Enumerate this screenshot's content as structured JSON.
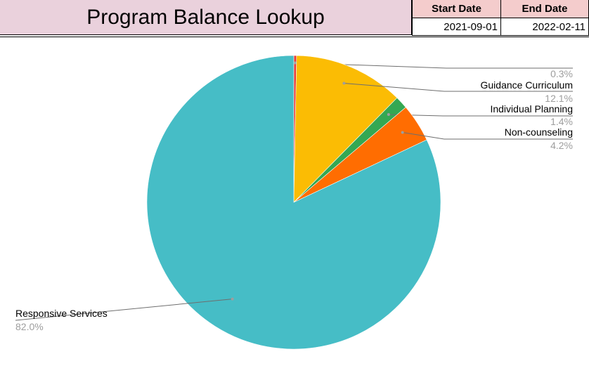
{
  "header": {
    "title": "Program Balance Lookup",
    "start_label": "Start Date",
    "end_label": "End Date",
    "start_value": "2021-09-01",
    "end_value": "2022-02-11"
  },
  "chart_data": {
    "type": "pie",
    "slices": [
      {
        "name": "",
        "value": 0.3,
        "label": "0.3%",
        "color": "#e53935"
      },
      {
        "name": "Guidance Curriculum",
        "value": 12.1,
        "label": "12.1%",
        "color": "#fbbc04"
      },
      {
        "name": "Individual Planning",
        "value": 1.4,
        "label": "1.4%",
        "color": "#34a853"
      },
      {
        "name": "Non-counseling",
        "value": 4.2,
        "label": "4.2%",
        "color": "#ff6d01"
      },
      {
        "name": "Responsive Services",
        "value": 82.0,
        "label": "82.0%",
        "color": "#46bdc6"
      }
    ]
  }
}
